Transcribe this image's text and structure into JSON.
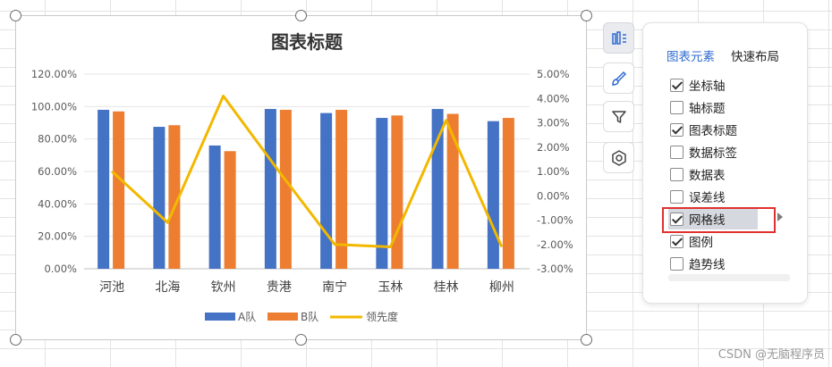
{
  "chart_data": {
    "type": "bar",
    "title": "图表标题",
    "categories": [
      "河池",
      "北海",
      "钦州",
      "贵港",
      "南宁",
      "玉林",
      "桂林",
      "柳州"
    ],
    "series": [
      {
        "name": "A队",
        "type": "bar",
        "axis": "left",
        "color": "#4472c4",
        "values": [
          0.98,
          0.875,
          0.76,
          0.985,
          0.96,
          0.93,
          0.985,
          0.91
        ]
      },
      {
        "name": "B队",
        "type": "bar",
        "axis": "left",
        "color": "#ed7d31",
        "values": [
          0.97,
          0.885,
          0.725,
          0.98,
          0.98,
          0.945,
          0.955,
          0.93
        ]
      },
      {
        "name": "领先度",
        "type": "line",
        "axis": "right",
        "color": "#f2b800",
        "values": [
          0.01,
          -0.011,
          0.041,
          0.01,
          -0.02,
          -0.021,
          0.031,
          -0.021
        ]
      }
    ],
    "left_axis": {
      "ticks": [
        "120.00%",
        "100.00%",
        "80.00%",
        "60.00%",
        "40.00%",
        "20.00%",
        "0.00%"
      ],
      "ylim": [
        0,
        1.2
      ]
    },
    "right_axis": {
      "ticks": [
        "5.00%",
        "4.00%",
        "3.00%",
        "2.00%",
        "1.00%",
        "0.00%",
        "-1.00%",
        "-2.00%",
        "-3.00%"
      ],
      "ylim": [
        -0.03,
        0.05
      ]
    },
    "grid": true,
    "legend": "bottom"
  },
  "side_buttons": [
    "chart-elements-icon",
    "brush-icon",
    "filter-icon",
    "settings-icon"
  ],
  "panel": {
    "tabs": [
      "图表元素",
      "快速布局"
    ],
    "options": [
      {
        "label": "坐标轴",
        "checked": true
      },
      {
        "label": "轴标题",
        "checked": false
      },
      {
        "label": "图表标题",
        "checked": true
      },
      {
        "label": "数据标签",
        "checked": false
      },
      {
        "label": "数据表",
        "checked": false
      },
      {
        "label": "误差线",
        "checked": false
      },
      {
        "label": "网格线",
        "checked": true
      },
      {
        "label": "图例",
        "checked": true
      },
      {
        "label": "趋势线",
        "checked": false
      }
    ]
  },
  "watermark": "CSDN @无脑程序员"
}
